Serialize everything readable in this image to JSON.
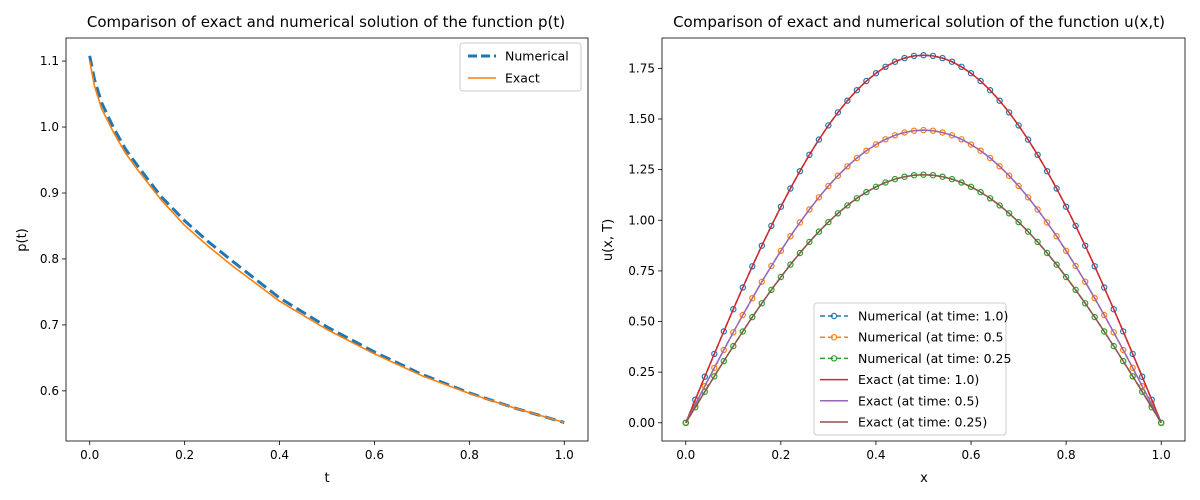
{
  "chart_data": [
    {
      "type": "line",
      "title": "Comparison of exact and numerical solution of the function p(t)",
      "xlabel": "t",
      "ylabel": "p(t)",
      "xlim": [
        -0.05,
        1.05
      ],
      "ylim": [
        0.524,
        1.135
      ],
      "xticks": [
        0.0,
        0.2,
        0.4,
        0.6,
        0.8,
        1.0
      ],
      "xtick_labels": [
        "0.0",
        "0.2",
        "0.4",
        "0.6",
        "0.8",
        "1.0"
      ],
      "yticks": [
        0.6,
        0.7,
        0.8,
        0.9,
        1.0,
        1.1
      ],
      "ytick_labels": [
        "0.6",
        "0.7",
        "0.8",
        "0.9",
        "1.0",
        "1.1"
      ],
      "legend_position": "top-right",
      "series": [
        {
          "name": "Numerical",
          "color": "#1f77b4",
          "style": "dashed-thick",
          "x": [
            0.0,
            0.01,
            0.025,
            0.05,
            0.075,
            0.1,
            0.15,
            0.2,
            0.25,
            0.3,
            0.4,
            0.5,
            0.6,
            0.7,
            0.8,
            0.9,
            1.0
          ],
          "y": [
            1.108,
            1.072,
            1.037,
            0.999,
            0.967,
            0.942,
            0.895,
            0.858,
            0.826,
            0.797,
            0.741,
            0.697,
            0.659,
            0.625,
            0.597,
            0.573,
            0.552
          ]
        },
        {
          "name": "Exact",
          "color": "#ff7f0e",
          "style": "solid",
          "x": [
            0.0,
            0.01,
            0.025,
            0.05,
            0.075,
            0.1,
            0.15,
            0.2,
            0.25,
            0.3,
            0.4,
            0.5,
            0.6,
            0.7,
            0.8,
            0.9,
            1.0
          ],
          "y": [
            1.1,
            1.062,
            1.028,
            0.992,
            0.961,
            0.936,
            0.89,
            0.851,
            0.819,
            0.79,
            0.736,
            0.693,
            0.656,
            0.623,
            0.596,
            0.573,
            0.552
          ]
        }
      ]
    },
    {
      "type": "line",
      "title": "Comparison of exact and numerical solution of the function u(x,t)",
      "xlabel": "x",
      "ylabel": "u(x, T)",
      "xlim": [
        -0.05,
        1.05
      ],
      "ylim": [
        -0.09,
        1.9
      ],
      "xticks": [
        0.0,
        0.2,
        0.4,
        0.6,
        0.8,
        1.0
      ],
      "xtick_labels": [
        "0.0",
        "0.2",
        "0.4",
        "0.6",
        "0.8",
        "1.0"
      ],
      "yticks": [
        0.0,
        0.25,
        0.5,
        0.75,
        1.0,
        1.25,
        1.5,
        1.75
      ],
      "ytick_labels": [
        "0.00",
        "0.25",
        "0.50",
        "0.75",
        "1.00",
        "1.25",
        "1.50",
        "1.75"
      ],
      "legend_position": "lower-center",
      "x_points": 51,
      "curve_shape": "A*sin(pi*x)",
      "series": [
        {
          "name": "Numerical (at time: 1.0)",
          "amplitude": 1.815,
          "color": "#1f77b4",
          "style": "dashed-circle"
        },
        {
          "name": "Numerical (at time: 0.5",
          "amplitude": 1.445,
          "color": "#ff7f0e",
          "style": "dashed-circle"
        },
        {
          "name": "Numerical (at time: 0.25",
          "amplitude": 1.225,
          "color": "#2ca02c",
          "style": "dashed-circle"
        },
        {
          "name": "Exact (at time: 1.0)",
          "amplitude": 1.815,
          "color": "#d62728",
          "style": "solid"
        },
        {
          "name": "Exact (at time: 0.5)",
          "amplitude": 1.445,
          "color": "#9467bd",
          "style": "solid"
        },
        {
          "name": "Exact (at time: 0.25)",
          "amplitude": 1.225,
          "color": "#8c564b",
          "style": "solid"
        }
      ]
    }
  ]
}
